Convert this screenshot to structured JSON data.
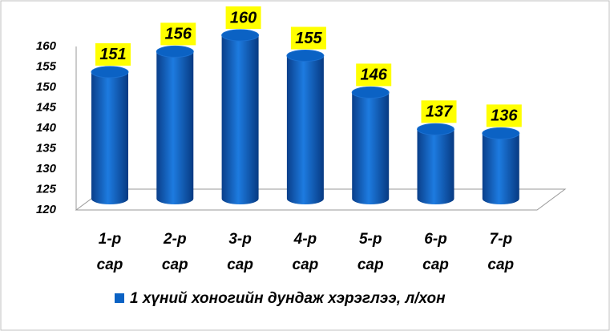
{
  "chart_data": {
    "type": "bar",
    "categories": [
      "1-р сар",
      "2-р сар",
      "3-р сар",
      "4-р сар",
      "5-р сар",
      "6-р сар",
      "7-р сар"
    ],
    "series": [
      {
        "name": "1 хүний хоногийн дундаж хэрэглээ, л/хон",
        "color": "#0b62c4",
        "values": [
          151,
          156,
          160,
          155,
          146,
          137,
          136
        ]
      }
    ],
    "ylim": [
      120,
      160
    ],
    "yticks": [
      120,
      125,
      130,
      135,
      140,
      145,
      150,
      155,
      160
    ],
    "legend": "bottom",
    "grid": false
  }
}
